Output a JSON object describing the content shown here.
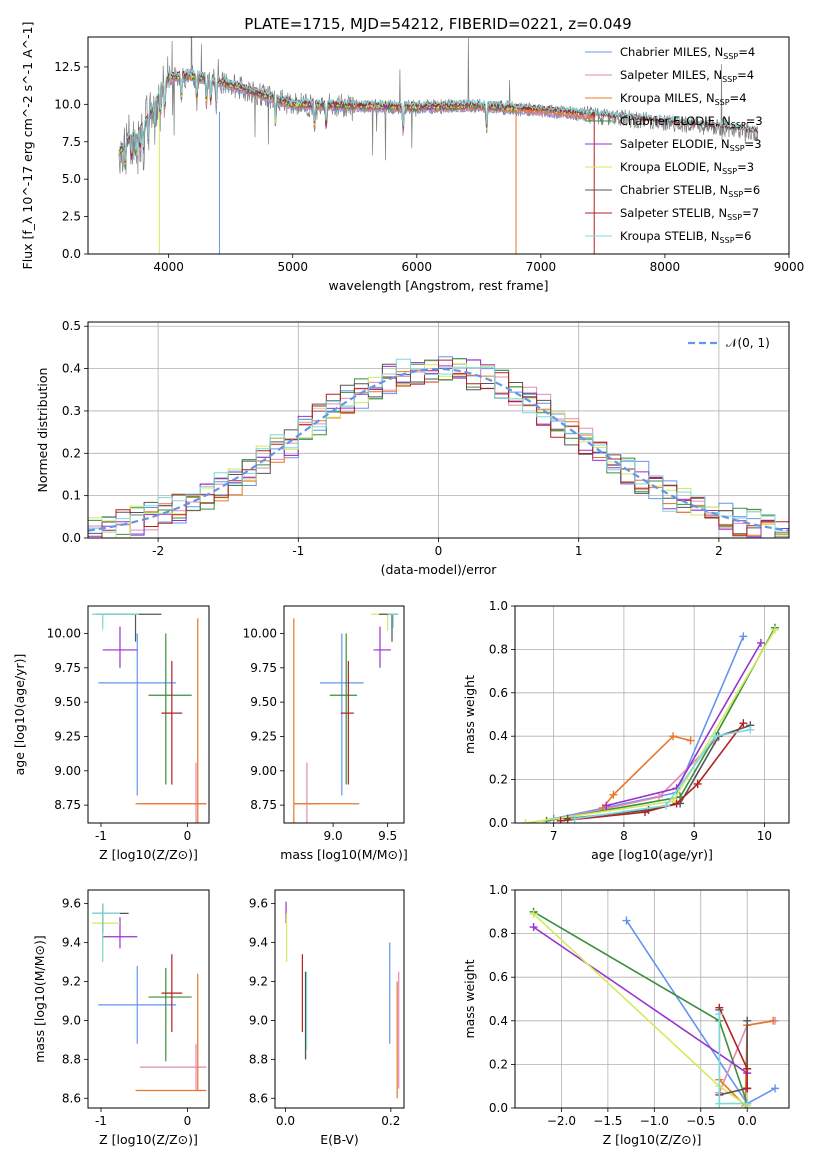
{
  "figure": {
    "title": "PLATE=1715, MJD=54212, FIBERID=0221, z=0.049"
  },
  "chart_data": [
    {
      "id": "spectrum",
      "type": "line",
      "xlabel": "wavelength [Angstrom, rest frame]",
      "ylabel": "Flux [f_λ 10^-17 erg cm^-2 s^-1 A^-1]",
      "xlim": [
        3350,
        9000
      ],
      "ylim": [
        0,
        14.5
      ],
      "xticks": [
        4000,
        5000,
        6000,
        7000,
        8000,
        9000
      ],
      "yticks": [
        0.0,
        2.5,
        5.0,
        7.5,
        10.0,
        12.5
      ],
      "ytick_labels": [
        "0.0",
        "2.5",
        "5.0",
        "7.5",
        "10.0",
        "12.5"
      ],
      "grid": false,
      "legend_position": "top-right",
      "data": {
        "x": [
          3600,
          3700,
          3800,
          3900,
          4000,
          4200,
          4500,
          5000,
          5500,
          6000,
          6500,
          7000,
          7500,
          8000,
          8500,
          8750
        ],
        "y": [
          6.8,
          7.9,
          8.6,
          10.2,
          11.8,
          11.9,
          11.3,
          10.0,
          9.9,
          9.8,
          9.9,
          9.6,
          9.2,
          8.8,
          8.4,
          8.1
        ]
      },
      "series": [
        {
          "name": "Chabrier MILES",
          "nssp": "4",
          "color": "#6495ed",
          "xmax": 7430
        },
        {
          "name": "Salpeter MILES",
          "nssp": "4",
          "color": "#e08bb8",
          "xmax": 7430
        },
        {
          "name": "Kroupa MILES",
          "nssp": "4",
          "color": "#e8772a",
          "xmax": 7430
        },
        {
          "name": "Chabrier ELODIE",
          "nssp": "3",
          "color": "#3a8f3a",
          "xmax": 6800
        },
        {
          "name": "Salpeter ELODIE",
          "nssp": "3",
          "color": "#9932cc",
          "xmax": 6800
        },
        {
          "name": "Kroupa ELODIE",
          "nssp": "3",
          "color": "#d4ea5e",
          "xmax": 6800
        },
        {
          "name": "Chabrier STELIB",
          "nssp": "6",
          "color": "#555555",
          "xmax": 8750
        },
        {
          "name": "Salpeter STELIB",
          "nssp": "7",
          "color": "#b22222",
          "xmax": 8750
        },
        {
          "name": "Kroupa STELIB",
          "nssp": "6",
          "color": "#7fd8dc",
          "xmax": 8750
        }
      ]
    },
    {
      "id": "residuals",
      "type": "line",
      "xlabel": "(data-model)/error",
      "ylabel": "Normed distribution",
      "xlim": [
        -2.5,
        2.5
      ],
      "ylim": [
        0,
        0.51
      ],
      "xticks": [
        -2,
        -1,
        0,
        1,
        2
      ],
      "yticks": [
        0.0,
        0.1,
        0.2,
        0.3,
        0.4,
        0.5
      ],
      "ytick_labels": [
        "0.0",
        "0.1",
        "0.2",
        "0.3",
        "0.4",
        "0.5"
      ],
      "grid": true,
      "legend_position": "top-right",
      "legend_label": "𝒩(0, 1)",
      "bin_width": 0.1,
      "series_colors": [
        "#6495ed",
        "#e08bb8",
        "#e8772a",
        "#3a8f3a",
        "#9932cc",
        "#d4ea5e",
        "#555555",
        "#b22222",
        "#7fd8dc"
      ]
    },
    {
      "id": "age-vs-Z",
      "type": "scatter",
      "xlabel": "Z [log10(Z/Z⊙)]",
      "ylabel": "age  [log10(age/yr)]",
      "xlim": [
        -1.15,
        0.25
      ],
      "ylim": [
        8.62,
        10.2
      ],
      "xticks": [
        -1,
        0
      ],
      "yticks": [
        8.75,
        9.0,
        9.25,
        9.5,
        9.75,
        10.0
      ],
      "ytick_labels": [
        "8.75",
        "9.00",
        "9.25",
        "9.50",
        "9.75",
        "10.00"
      ],
      "grid": false,
      "points": [
        {
          "color": "#6495ed",
          "x": -0.58,
          "xerr": [
            0.45,
            0.45
          ],
          "y": 9.64,
          "yerr": [
            0.82,
            0.36
          ]
        },
        {
          "color": "#e08bb8",
          "x": 0.1,
          "xerr": [
            0.65,
            0.12
          ],
          "y": 8.76,
          "yerr": [
            0.4,
            0.3
          ]
        },
        {
          "color": "#e8772a",
          "x": 0.12,
          "xerr": [
            0.72,
            0.1
          ],
          "y": 8.76,
          "yerr": [
            0.42,
            1.35
          ]
        },
        {
          "color": "#3a8f3a",
          "x": -0.25,
          "xerr": [
            0.2,
            0.3
          ],
          "y": 9.55,
          "yerr": [
            0.65,
            0.45
          ]
        },
        {
          "color": "#9932cc",
          "x": -0.78,
          "xerr": [
            0.2,
            0.2
          ],
          "y": 9.88,
          "yerr": [
            0.13,
            0.17
          ]
        },
        {
          "color": "#d4ea5e",
          "x": -0.98,
          "xerr": [
            0.12,
            0.45
          ],
          "y": 10.14,
          "yerr": [
            0.12,
            0.0
          ]
        },
        {
          "color": "#555555",
          "x": -0.6,
          "xerr": [
            0.45,
            0.3
          ],
          "y": 10.14,
          "yerr": [
            0.2,
            0.0
          ]
        },
        {
          "color": "#b22222",
          "x": -0.18,
          "xerr": [
            0.12,
            0.12
          ],
          "y": 9.42,
          "yerr": [
            0.52,
            0.38
          ]
        },
        {
          "color": "#7fd8dc",
          "x": -0.98,
          "xerr": [
            0.12,
            0.42
          ],
          "y": 10.14,
          "yerr": [
            0.1,
            0.0
          ]
        }
      ]
    },
    {
      "id": "age-vs-mass",
      "type": "scatter",
      "xlabel": "mass [log10(M/M⊙)]",
      "ylabel": "",
      "xlim": [
        8.55,
        9.65
      ],
      "ylim": [
        8.62,
        10.2
      ],
      "xticks": [
        9.0,
        9.5
      ],
      "xtick_labels": [
        "9.0",
        "9.5"
      ],
      "yticks": [
        8.75,
        9.0,
        9.25,
        9.5,
        9.75,
        10.0
      ],
      "ytick_labels": [
        "8.75",
        "9.00",
        "9.25",
        "9.50",
        "9.75",
        "10.00"
      ],
      "grid": false,
      "points": [
        {
          "color": "#6495ed",
          "x": 9.08,
          "xerr": [
            0.2,
            0.2
          ],
          "y": 9.64,
          "yerr": [
            0.82,
            0.36
          ]
        },
        {
          "color": "#e08bb8",
          "x": 8.76,
          "xerr": [
            0.12,
            0.12
          ],
          "y": 8.76,
          "yerr": [
            0.4,
            0.3
          ]
        },
        {
          "color": "#e8772a",
          "x": 8.64,
          "xerr": [
            0.0,
            0.6
          ],
          "y": 8.76,
          "yerr": [
            0.42,
            1.35
          ]
        },
        {
          "color": "#3a8f3a",
          "x": 9.12,
          "xerr": [
            0.15,
            0.1
          ],
          "y": 9.55,
          "yerr": [
            0.65,
            0.45
          ]
        },
        {
          "color": "#9932cc",
          "x": 9.43,
          "xerr": [
            0.06,
            0.1
          ],
          "y": 9.88,
          "yerr": [
            0.13,
            0.17
          ]
        },
        {
          "color": "#d4ea5e",
          "x": 9.5,
          "xerr": [
            0.15,
            0.05
          ],
          "y": 10.14,
          "yerr": [
            0.12,
            0.0
          ]
        },
        {
          "color": "#555555",
          "x": 9.54,
          "xerr": [
            0.12,
            0.05
          ],
          "y": 10.14,
          "yerr": [
            0.2,
            0.0
          ]
        },
        {
          "color": "#b22222",
          "x": 9.14,
          "xerr": [
            0.07,
            0.05
          ],
          "y": 9.42,
          "yerr": [
            0.52,
            0.38
          ]
        },
        {
          "color": "#7fd8dc",
          "x": 9.55,
          "xerr": [
            0.05,
            0.05
          ],
          "y": 10.14,
          "yerr": [
            0.1,
            0.0
          ]
        }
      ]
    },
    {
      "id": "weight-vs-age",
      "type": "line",
      "xlabel": "age  [log10(age/yr)]",
      "ylabel": "mass weight",
      "xlim": [
        6.45,
        10.35
      ],
      "ylim": [
        0,
        1.0
      ],
      "xticks": [
        7,
        8,
        9,
        10
      ],
      "yticks": [
        0.0,
        0.2,
        0.4,
        0.6,
        0.8,
        1.0
      ],
      "ytick_labels": [
        "0.0",
        "0.2",
        "0.4",
        "0.6",
        "0.8",
        "1.0"
      ],
      "grid": true,
      "series": [
        {
          "color": "#6495ed",
          "x": [
            7.0,
            8.75,
            9.7
          ],
          "y": [
            0.02,
            0.14,
            0.86
          ]
        },
        {
          "color": "#e08bb8",
          "x": [
            6.9,
            7.8,
            8.5,
            9.3
          ],
          "y": [
            0.01,
            0.07,
            0.12,
            0.38
          ]
        },
        {
          "color": "#e8772a",
          "x": [
            7.7,
            7.85,
            8.7,
            8.95
          ],
          "y": [
            0.07,
            0.13,
            0.4,
            0.38
          ]
        },
        {
          "color": "#3a8f3a",
          "x": [
            6.9,
            8.8,
            9.3,
            10.15
          ],
          "y": [
            0.01,
            0.12,
            0.4,
            0.9
          ]
        },
        {
          "color": "#9932cc",
          "x": [
            7.75,
            8.75,
            9.95
          ],
          "y": [
            0.08,
            0.16,
            0.83
          ]
        },
        {
          "color": "#d4ea5e",
          "x": [
            6.6,
            8.7,
            10.15
          ],
          "y": [
            0.0,
            0.1,
            0.89
          ]
        },
        {
          "color": "#555555",
          "x": [
            7.2,
            8.35,
            8.8,
            9.35,
            9.8
          ],
          "y": [
            0.02,
            0.06,
            0.09,
            0.4,
            0.45
          ]
        },
        {
          "color": "#b22222",
          "x": [
            7.1,
            8.3,
            8.75,
            9.05,
            9.7
          ],
          "y": [
            0.01,
            0.05,
            0.09,
            0.18,
            0.46
          ]
        },
        {
          "color": "#7fd8dc",
          "x": [
            7.3,
            8.6,
            9.3,
            9.8
          ],
          "y": [
            0.02,
            0.08,
            0.4,
            0.43
          ]
        }
      ]
    },
    {
      "id": "mass-vs-Z",
      "type": "scatter",
      "xlabel": "Z [log10(Z/Z⊙)]",
      "ylabel": "mass [log10(M/M⊙)]",
      "xlim": [
        -1.15,
        0.25
      ],
      "ylim": [
        8.55,
        9.67
      ],
      "xticks": [
        -1,
        0
      ],
      "yticks": [
        8.6,
        8.8,
        9.0,
        9.2,
        9.4,
        9.6
      ],
      "ytick_labels": [
        "8.6",
        "8.8",
        "9.0",
        "9.2",
        "9.4",
        "9.6"
      ],
      "grid": false,
      "points": [
        {
          "color": "#6495ed",
          "x": -0.58,
          "xerr": [
            0.45,
            0.45
          ],
          "y": 9.08,
          "yerr": [
            0.2,
            0.2
          ]
        },
        {
          "color": "#e08bb8",
          "x": 0.1,
          "xerr": [
            0.65,
            0.12
          ],
          "y": 8.76,
          "yerr": [
            0.12,
            0.12
          ]
        },
        {
          "color": "#e8772a",
          "x": 0.12,
          "xerr": [
            0.72,
            0.1
          ],
          "y": 8.64,
          "yerr": [
            0.0,
            0.6
          ]
        },
        {
          "color": "#3a8f3a",
          "x": -0.25,
          "xerr": [
            0.2,
            0.3
          ],
          "y": 9.12,
          "yerr": [
            0.33,
            0.15
          ]
        },
        {
          "color": "#9932cc",
          "x": -0.78,
          "xerr": [
            0.2,
            0.2
          ],
          "y": 9.43,
          "yerr": [
            0.06,
            0.1
          ]
        },
        {
          "color": "#d4ea5e",
          "x": -0.98,
          "xerr": [
            0.12,
            0.2
          ],
          "y": 9.5,
          "yerr": [
            0.2,
            0.05
          ]
        },
        {
          "color": "#555555",
          "x": -0.98,
          "xerr": [
            0.12,
            0.3
          ],
          "y": 9.55,
          "yerr": [
            0.1,
            0.05
          ]
        },
        {
          "color": "#b22222",
          "x": -0.18,
          "xerr": [
            0.12,
            0.12
          ],
          "y": 9.14,
          "yerr": [
            0.2,
            0.2
          ]
        },
        {
          "color": "#7fd8dc",
          "x": -0.98,
          "xerr": [
            0.12,
            0.2
          ],
          "y": 9.55,
          "yerr": [
            0.25,
            0.05
          ]
        }
      ]
    },
    {
      "id": "mass-vs-ebv",
      "type": "scatter",
      "xlabel": "E(B-V)",
      "ylabel": "",
      "xlim": [
        -0.02,
        0.225
      ],
      "ylim": [
        8.55,
        9.67
      ],
      "xticks": [
        0.0,
        0.2
      ],
      "xtick_labels": [
        "0.0",
        "0.2"
      ],
      "yticks": [
        8.6,
        8.8,
        9.0,
        9.2,
        9.4,
        9.6
      ],
      "ytick_labels": [
        "8.6",
        "8.8",
        "9.0",
        "9.2",
        "9.4",
        "9.6"
      ],
      "grid": false,
      "points": [
        {
          "color": "#6495ed",
          "x": 0.198,
          "xerr": [
            0,
            0
          ],
          "y": 9.08,
          "yerr": [
            0.2,
            0.32
          ]
        },
        {
          "color": "#e08bb8",
          "x": 0.215,
          "xerr": [
            0,
            0
          ],
          "y": 8.9,
          "yerr": [
            0.25,
            0.35
          ]
        },
        {
          "color": "#e8772a",
          "x": 0.212,
          "xerr": [
            0,
            0
          ],
          "y": 8.9,
          "yerr": [
            0.3,
            0.3
          ]
        },
        {
          "color": "#3a8f3a",
          "x": 0.038,
          "xerr": [
            0,
            0
          ],
          "y": 9.0,
          "yerr": [
            0.2,
            0.25
          ]
        },
        {
          "color": "#9932cc",
          "x": 0.001,
          "xerr": [
            0,
            0
          ],
          "y": 9.55,
          "yerr": [
            0.05,
            0.06
          ]
        },
        {
          "color": "#d4ea5e",
          "x": 0.002,
          "xerr": [
            0,
            0
          ],
          "y": 9.45,
          "yerr": [
            0.15,
            0.1
          ]
        },
        {
          "color": "#555555",
          "x": 0.038,
          "xerr": [
            0,
            0
          ],
          "y": 9.0,
          "yerr": [
            0.2,
            0.25
          ]
        },
        {
          "color": "#b22222",
          "x": 0.032,
          "xerr": [
            0,
            0
          ],
          "y": 9.14,
          "yerr": [
            0.2,
            0.2
          ]
        },
        {
          "color": "#7fd8dc",
          "x": 0.04,
          "xerr": [
            0,
            0
          ],
          "y": 9.05,
          "yerr": [
            0.2,
            0.2
          ]
        }
      ]
    },
    {
      "id": "weight-vs-Z",
      "type": "line",
      "xlabel": "Z [log10(Z/Z⊙)]",
      "ylabel": "mass weight",
      "xlim": [
        -2.5,
        0.45
      ],
      "ylim": [
        0,
        1.0
      ],
      "xticks": [
        -2.0,
        -1.5,
        -1.0,
        -0.5,
        0.0
      ],
      "xtick_labels": [
        "−2.0",
        "−1.5",
        "−1.0",
        "−0.5",
        "0.0"
      ],
      "yticks": [
        0.0,
        0.2,
        0.4,
        0.6,
        0.8,
        1.0
      ],
      "ytick_labels": [
        "0.0",
        "0.2",
        "0.4",
        "0.6",
        "0.8",
        "1.0"
      ],
      "grid": true,
      "series": [
        {
          "color": "#6495ed",
          "x": [
            -1.3,
            0.0,
            0.3
          ],
          "y": [
            0.86,
            0.02,
            0.09
          ]
        },
        {
          "color": "#e08bb8",
          "x": [
            -0.3,
            0.0,
            0.3
          ],
          "y": [
            0.07,
            0.38,
            0.4
          ]
        },
        {
          "color": "#e8772a",
          "x": [
            -0.3,
            -0.02,
            0.0,
            0.28
          ],
          "y": [
            0.13,
            0.01,
            0.38,
            0.4
          ]
        },
        {
          "color": "#3a8f3a",
          "x": [
            -2.3,
            -0.3,
            0.0
          ],
          "y": [
            0.9,
            0.4,
            0.02
          ]
        },
        {
          "color": "#9932cc",
          "x": [
            -2.3,
            0.0
          ],
          "y": [
            0.83,
            0.16
          ]
        },
        {
          "color": "#d4ea5e",
          "x": [
            -2.3,
            -0.3,
            0.0
          ],
          "y": [
            0.89,
            0.1,
            0.01
          ]
        },
        {
          "color": "#555555",
          "x": [
            -0.3,
            -0.3,
            0.0,
            0.0
          ],
          "y": [
            0.45,
            0.06,
            0.09,
            0.4
          ]
        },
        {
          "color": "#b22222",
          "x": [
            -0.3,
            0.0,
            0.0
          ],
          "y": [
            0.46,
            0.18,
            0.09
          ]
        },
        {
          "color": "#7fd8dc",
          "x": [
            -0.3,
            -0.3,
            0.0
          ],
          "y": [
            0.43,
            0.02,
            0.02
          ]
        }
      ]
    }
  ]
}
